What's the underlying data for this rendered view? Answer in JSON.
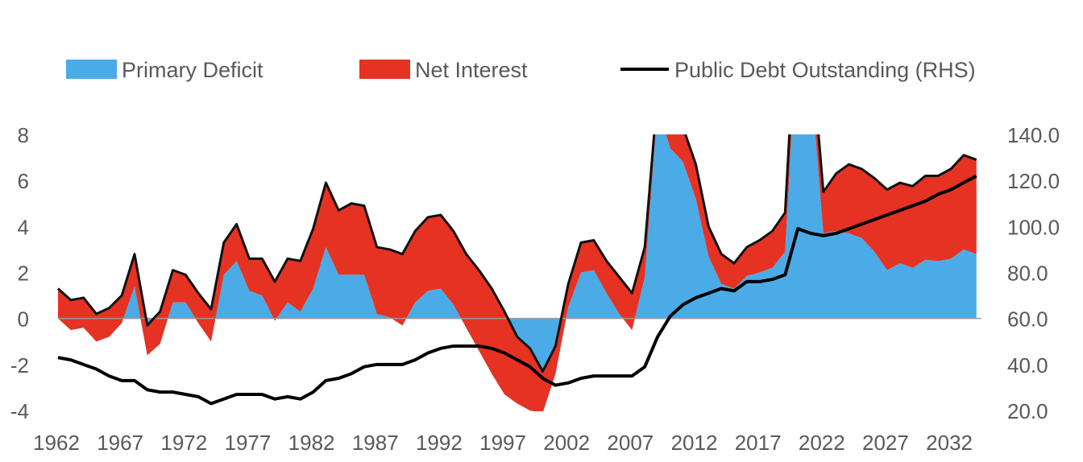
{
  "chart_data": {
    "type": "area",
    "title": "",
    "xlabel": "",
    "ylabel": "",
    "ylabel_right": "",
    "legend": {
      "placement": "top",
      "entries": [
        "Primary Deficit",
        "Net Interest",
        "Public Debt Outstanding (RHS)"
      ]
    },
    "colors": {
      "primary": "#4BABE6",
      "interest": "#E63223",
      "debt": "#000000",
      "zero_line": "#9a9a9a"
    },
    "ylim": [
      -4,
      8
    ],
    "ylim_right": [
      20,
      140
    ],
    "xlim": [
      1962,
      2034
    ],
    "y_ticks": [
      "8",
      "6",
      "4",
      "2",
      "0",
      "-2",
      "-4"
    ],
    "y_tick_values": [
      8,
      6,
      4,
      2,
      0,
      -2,
      -4
    ],
    "y_right_ticks": [
      "140.0",
      "120.0",
      "100.0",
      "80.0",
      "60.0",
      "40.0",
      "20.0"
    ],
    "y_right_tick_values": [
      140,
      120,
      100,
      80,
      60,
      40,
      20
    ],
    "x_ticks": [
      "1962",
      "1967",
      "1972",
      "1977",
      "1982",
      "1987",
      "1992",
      "1997",
      "2002",
      "2007",
      "2012",
      "2017",
      "2022",
      "2027",
      "2032"
    ],
    "x": [
      1962,
      1963,
      1964,
      1965,
      1966,
      1967,
      1968,
      1969,
      1970,
      1971,
      1972,
      1973,
      1974,
      1975,
      1976,
      1977,
      1978,
      1979,
      1980,
      1981,
      1982,
      1983,
      1984,
      1985,
      1986,
      1987,
      1988,
      1989,
      1990,
      1991,
      1992,
      1993,
      1994,
      1995,
      1996,
      1997,
      1998,
      1999,
      2000,
      2001,
      2002,
      2003,
      2004,
      2005,
      2006,
      2007,
      2008,
      2009,
      2010,
      2011,
      2012,
      2013,
      2014,
      2015,
      2016,
      2017,
      2018,
      2019,
      2020,
      2021,
      2022,
      2023,
      2024,
      2025,
      2026,
      2027,
      2028,
      2029,
      2030,
      2031,
      2032,
      2033,
      2034
    ],
    "series": [
      {
        "name": "Primary Deficit",
        "axis": "left",
        "stacked": true,
        "values": [
          0.0,
          -0.5,
          -0.4,
          -1.0,
          -0.8,
          -0.2,
          1.4,
          -1.6,
          -1.1,
          0.7,
          0.7,
          -0.2,
          -1.0,
          1.9,
          2.5,
          1.2,
          1.0,
          -0.1,
          0.7,
          0.3,
          1.3,
          3.1,
          1.9,
          1.9,
          1.9,
          0.2,
          0.05,
          -0.3,
          0.7,
          1.2,
          1.3,
          0.6,
          -0.4,
          -1.4,
          -2.4,
          -3.3,
          -3.7,
          -4.0,
          -4.1,
          -2.4,
          0.5,
          2.0,
          2.1,
          1.1,
          0.2,
          -0.5,
          1.8,
          9.2,
          7.4,
          6.8,
          5.2,
          2.7,
          1.5,
          1.3,
          1.85,
          2.0,
          2.2,
          2.9,
          13.1,
          10.6,
          3.7,
          3.8,
          3.7,
          3.5,
          2.9,
          2.1,
          2.4,
          2.2,
          2.55,
          2.5,
          2.6,
          3.0,
          2.8
        ]
      },
      {
        "name": "Net Interest",
        "axis": "left",
        "stacked": true,
        "values": [
          1.3,
          1.3,
          1.3,
          1.2,
          1.25,
          1.2,
          1.4,
          1.3,
          1.4,
          1.4,
          1.2,
          1.3,
          1.4,
          1.4,
          1.6,
          1.4,
          1.6,
          1.7,
          1.9,
          2.2,
          2.6,
          2.8,
          2.8,
          3.1,
          3.0,
          2.9,
          2.95,
          3.1,
          3.1,
          3.2,
          3.2,
          3.2,
          3.2,
          3.5,
          3.7,
          3.6,
          2.9,
          2.7,
          1.8,
          1.2,
          1.0,
          1.3,
          1.3,
          1.4,
          1.6,
          1.6,
          1.3,
          0.6,
          1.2,
          1.5,
          1.5,
          1.3,
          1.3,
          1.1,
          1.25,
          1.4,
          1.6,
          1.7,
          1.6,
          1.5,
          1.8,
          2.5,
          3.0,
          3.0,
          3.2,
          3.5,
          3.5,
          3.55,
          3.65,
          3.7,
          3.9,
          4.1,
          4.1
        ]
      },
      {
        "name": "Public Debt Outstanding (RHS)",
        "axis": "right",
        "type": "line",
        "values": [
          43,
          42,
          40,
          38,
          35,
          33,
          33,
          29,
          28,
          28,
          27,
          26,
          23,
          25,
          27,
          27,
          27,
          25,
          26,
          25,
          28,
          33,
          34,
          36,
          39,
          40,
          40,
          40,
          42,
          45,
          47,
          48,
          48,
          48,
          47,
          45,
          42,
          39,
          34,
          31,
          32,
          34,
          35,
          35,
          35,
          35,
          39,
          52,
          61,
          66,
          69,
          71,
          73,
          72,
          76,
          76,
          77,
          79,
          99,
          97,
          96,
          97,
          99,
          101,
          103,
          105,
          107,
          109,
          111,
          114,
          116,
          119,
          122
        ]
      }
    ]
  }
}
